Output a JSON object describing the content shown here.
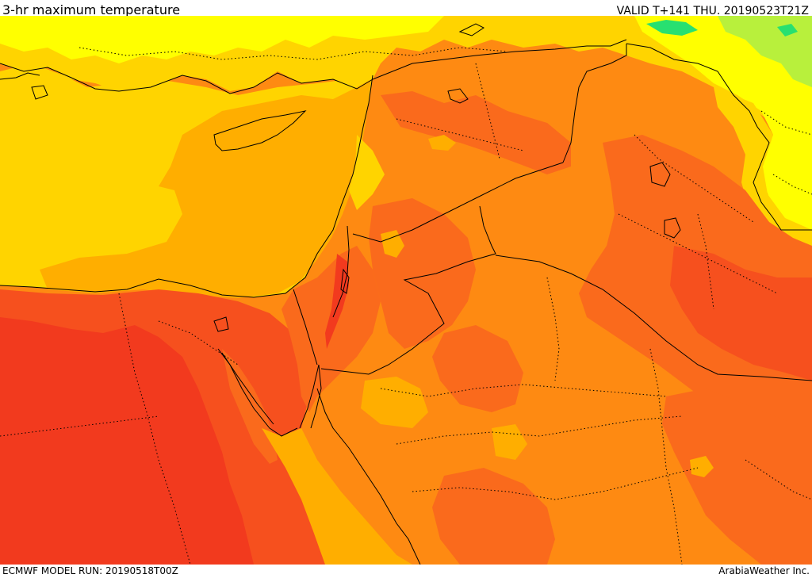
{
  "header": {
    "title": "3-hr maximum temperature",
    "valid": "VALID T+141 THU. 20190523T21Z"
  },
  "footer": {
    "model_run": "ECMWF MODEL RUN: 20190518T00Z",
    "credit": "ArabiaWeather Inc."
  },
  "map": {
    "field": "3-hr maximum temperature",
    "palette": {
      "dark_red": "#f23a1e",
      "red": "#f6501e",
      "red_orange": "#fa6a1c",
      "orange": "#fe8a12",
      "amber": "#ffae00",
      "gold": "#ffd400",
      "yellow": "#ffff00",
      "light_green": "#b8f03c",
      "green": "#28e070",
      "cyan": "#2ad8c8"
    },
    "boundary_color": "#000000"
  }
}
